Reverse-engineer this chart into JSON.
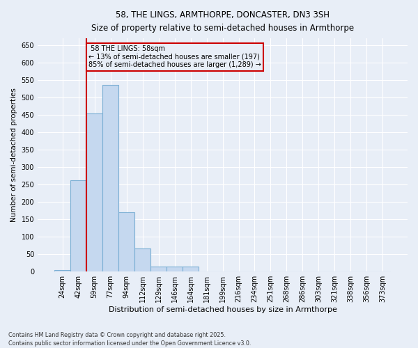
{
  "title_line1": "58, THE LINGS, ARMTHORPE, DONCASTER, DN3 3SH",
  "title_line2": "Size of property relative to semi-detached houses in Armthorpe",
  "xlabel": "Distribution of semi-detached houses by size in Armthorpe",
  "ylabel": "Number of semi-detached properties",
  "bar_labels": [
    "24sqm",
    "42sqm",
    "59sqm",
    "77sqm",
    "94sqm",
    "112sqm",
    "129sqm",
    "146sqm",
    "164sqm",
    "181sqm",
    "199sqm",
    "216sqm",
    "234sqm",
    "251sqm",
    "268sqm",
    "286sqm",
    "303sqm",
    "321sqm",
    "338sqm",
    "356sqm",
    "373sqm"
  ],
  "bar_values": [
    5,
    263,
    455,
    537,
    170,
    67,
    15,
    15,
    15,
    0,
    0,
    0,
    0,
    0,
    0,
    0,
    0,
    0,
    0,
    0,
    0
  ],
  "bar_color": "#c5d8ef",
  "bar_edge_color": "#7bafd4",
  "property_label": "58 THE LINGS: 58sqm",
  "pct_smaller": 13,
  "n_smaller": 197,
  "pct_larger": 85,
  "n_larger": 1289,
  "vline_color": "#cc0000",
  "annotation_box_color": "#cc0000",
  "vline_bar_index": 2,
  "ylim": [
    0,
    670
  ],
  "yticks": [
    0,
    50,
    100,
    150,
    200,
    250,
    300,
    350,
    400,
    450,
    500,
    550,
    600,
    650
  ],
  "bg_color": "#e8eef7",
  "grid_color": "#ffffff",
  "footer_line1": "Contains HM Land Registry data © Crown copyright and database right 2025.",
  "footer_line2": "Contains public sector information licensed under the Open Government Licence v3.0."
}
